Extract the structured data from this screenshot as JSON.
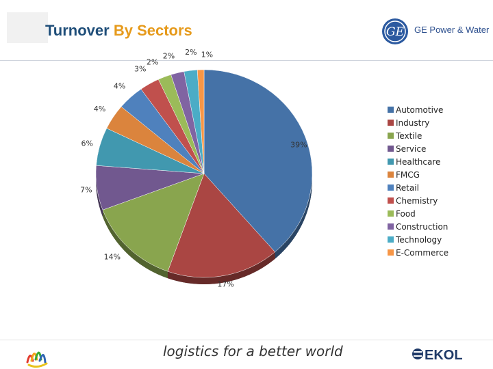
{
  "header": {
    "title_part1": "Turnover",
    "title_part2": "By Sectors",
    "logo_text": "GE Power & Water"
  },
  "footer": {
    "tagline": "logistics for a better world",
    "kol_logo_text": "EKOL"
  },
  "colors": {
    "title_blue": "#1f4e79",
    "title_orange": "#e69a1b"
  },
  "chart_data": {
    "type": "pie",
    "title": "",
    "legend_position": "right",
    "categories": [
      "Automotive",
      "Industry",
      "Textile",
      "Service",
      "Healthcare",
      "FMCG",
      "Retail",
      "Chemistry",
      "Food",
      "Construction",
      "Technology",
      "E-Commerce"
    ],
    "values": [
      39,
      17,
      14,
      7,
      6,
      4,
      4,
      3,
      2,
      2,
      2,
      1
    ],
    "value_labels": [
      "39%",
      "17%",
      "14%",
      "7%",
      "6%",
      "4%",
      "4%",
      "3%",
      "2%",
      "2%",
      "2%",
      "1%"
    ],
    "colors": [
      "#4572a7",
      "#aa4643",
      "#89a54e",
      "#71588f",
      "#4198af",
      "#db843d",
      "#4f81bd",
      "#c0504d",
      "#9bbb59",
      "#8064a2",
      "#4bacc6",
      "#f79646"
    ]
  }
}
